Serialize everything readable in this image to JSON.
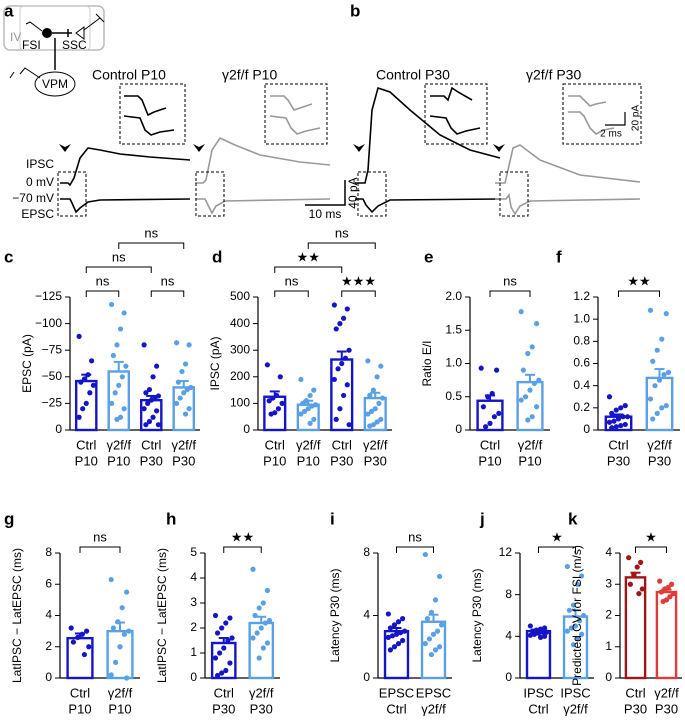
{
  "diagram": {
    "panel_a": "a",
    "panel_b": "b",
    "layer": "IV",
    "fsi": "FSI",
    "ssc": "SSC",
    "vpm": "VPM",
    "titles": [
      "Control P10",
      "γ2f/f P10",
      "Control P30",
      "γ2f/f P30"
    ],
    "trace_labels": [
      "IPSC",
      "0 mV",
      "−70 mV",
      "EPSC"
    ],
    "scale_a": [
      "40 pA",
      "10 ms"
    ],
    "scale_b": [
      "20 pA",
      "2 ms"
    ]
  },
  "chart_data": [
    {
      "type": "bar",
      "label": "c",
      "ylabel": "EPSC (pA)",
      "categories": [
        [
          "Ctrl",
          "P10"
        ],
        [
          "γ2f/f",
          "P10"
        ],
        [
          "Ctrl",
          "P30"
        ],
        [
          "γ2f/f",
          "P30"
        ]
      ],
      "colors": [
        "#1515c8",
        "#5aa0e6",
        "#1515c8",
        "#5aa0e6"
      ],
      "values": [
        -46,
        -55,
        -28,
        -40
      ],
      "errors": [
        6,
        9,
        4,
        6
      ],
      "points": [
        [
          -88,
          -65,
          -52,
          -48,
          -45,
          -42,
          -35,
          -25,
          -20,
          -12
        ],
        [
          -118,
          -110,
          -95,
          -80,
          -70,
          -60,
          -50,
          -42,
          -35,
          -25,
          -20,
          -12,
          -10
        ],
        [
          -80,
          -60,
          -50,
          -38,
          -35,
          -32,
          -30,
          -28,
          -25,
          -20,
          -18,
          -12,
          -8,
          -5,
          -5
        ],
        [
          -82,
          -80,
          -62,
          -55,
          -45,
          -40,
          -38,
          -35,
          -30,
          -25,
          -20,
          -15
        ]
      ],
      "ylim": [
        0,
        -125
      ],
      "yticks": [
        0,
        {
          "value": -25,
          "label": "−25"
        },
        {
          "value": -50,
          "label": "−50"
        },
        {
          "value": -75,
          "label": "−75"
        },
        {
          "value": -100,
          "label": "−100"
        },
        {
          "value": -125,
          "label": "−125"
        }
      ],
      "brackets": [
        {
          "groups": [
            0,
            1
          ],
          "text": "ns"
        },
        {
          "groups": [
            2,
            3
          ],
          "text": "ns"
        },
        {
          "groups": [
            0,
            2
          ],
          "text": "ns"
        },
        {
          "groups": [
            1,
            3
          ],
          "text": "ns"
        }
      ]
    },
    {
      "type": "bar",
      "label": "d",
      "ylabel": "IPSC (pA)",
      "categories": [
        [
          "Ctrl",
          "P10"
        ],
        [
          "γ2f/f",
          "P10"
        ],
        [
          "Ctrl",
          "P30"
        ],
        [
          "γ2f/f",
          "P30"
        ]
      ],
      "colors": [
        "#1515c8",
        "#5aa0e6",
        "#1515c8",
        "#5aa0e6"
      ],
      "values": [
        125,
        95,
        265,
        120
      ],
      "errors": [
        20,
        15,
        30,
        20
      ],
      "points": [
        [
          245,
          200,
          130,
          120,
          110,
          100,
          80,
          65,
          60
        ],
        [
          190,
          150,
          130,
          110,
          100,
          95,
          90,
          80,
          70,
          60,
          40,
          25
        ],
        [
          470,
          455,
          420,
          400,
          380,
          300,
          270,
          250,
          230,
          190,
          170,
          130,
          80,
          40,
          20
        ],
        [
          260,
          240,
          200,
          150,
          130,
          120,
          100,
          80,
          70,
          60,
          40,
          30,
          20,
          15
        ]
      ],
      "ylim": [
        0,
        500
      ],
      "yticks": [
        0,
        100,
        200,
        300,
        400,
        500
      ],
      "brackets": [
        {
          "groups": [
            0,
            1
          ],
          "text": "ns"
        },
        {
          "groups": [
            2,
            3
          ],
          "text": "★★★"
        },
        {
          "groups": [
            0,
            2
          ],
          "text": "★★"
        },
        {
          "groups": [
            1,
            3
          ],
          "text": "ns"
        }
      ]
    },
    {
      "type": "bar",
      "label": "e",
      "ylabel": "Ratio E/I",
      "categories": [
        [
          "Ctrl",
          "P10"
        ],
        [
          "γ2f/f",
          "P10"
        ]
      ],
      "colors": [
        "#1515c8",
        "#5aa0e6"
      ],
      "values": [
        0.44,
        0.72
      ],
      "errors": [
        0.08,
        0.11
      ],
      "points": [
        [
          0.93,
          0.9,
          0.55,
          0.5,
          0.35,
          0.25,
          0.2,
          0.1,
          0.05
        ],
        [
          1.78,
          1.6,
          1.25,
          1.15,
          0.9,
          0.75,
          0.7,
          0.6,
          0.5,
          0.45,
          0.35,
          0.2,
          0.15
        ]
      ],
      "ylim": [
        0,
        2
      ],
      "yticks": [
        0,
        0.5,
        {
          "value": 1,
          "label": "1.0"
        },
        1.5,
        {
          "value": 2,
          "label": "2.0"
        }
      ],
      "brackets": [
        {
          "groups": [
            0,
            1
          ],
          "text": "ns"
        }
      ]
    },
    {
      "type": "bar",
      "label": "f",
      "categories": [
        [
          "Ctrl",
          "P30"
        ],
        [
          "γ2f/f",
          "P30"
        ]
      ],
      "colors": [
        "#1515c8",
        "#5aa0e6"
      ],
      "values": [
        0.12,
        0.47
      ],
      "errors": [
        0.02,
        0.08
      ],
      "points": [
        [
          0.3,
          0.22,
          0.2,
          0.18,
          0.15,
          0.12,
          0.12,
          0.1,
          0.08,
          0.07,
          0.05,
          0.04,
          0.03,
          0.02
        ],
        [
          1.08,
          1.05,
          0.82,
          0.72,
          0.62,
          0.52,
          0.5,
          0.45,
          0.4,
          0.28,
          0.22,
          0.2,
          0.15,
          0.1
        ]
      ],
      "ylim": [
        0,
        1.2
      ],
      "yticks": [
        0,
        0.2,
        0.4,
        0.6,
        0.8,
        {
          "value": 1,
          "label": "1.0"
        },
        1.2
      ],
      "brackets": [
        {
          "groups": [
            0,
            1
          ],
          "text": "★★"
        }
      ]
    },
    {
      "type": "bar",
      "label": "g",
      "ylabel": "LatIPSC − LatEPSC (ms)",
      "categories": [
        [
          "Ctrl",
          "P10"
        ],
        [
          "γ2f/f",
          "P10"
        ]
      ],
      "colors": [
        "#1515c8",
        "#5aa0e6"
      ],
      "values": [
        2.55,
        3.0
      ],
      "errors": [
        0.3,
        0.55
      ],
      "points": [
        [
          3.2,
          3.0,
          2.8,
          2.6,
          2.3,
          2.0,
          1.5
        ],
        [
          6.3,
          5.5,
          4.5,
          3.6,
          3.2,
          3.0,
          2.8,
          2.0,
          1.0,
          0.2,
          0
        ]
      ],
      "ylim": [
        0,
        8
      ],
      "yticks": [
        0,
        2,
        4,
        6,
        8
      ],
      "brackets": [
        {
          "groups": [
            0,
            1
          ],
          "text": "ns"
        }
      ]
    },
    {
      "type": "bar",
      "label": "h",
      "ylabel": "LatIPSC − LatEPSC (ms)",
      "categories": [
        [
          "Ctrl",
          "P30"
        ],
        [
          "γ2f/f",
          "P30"
        ]
      ],
      "colors": [
        "#1515c8",
        "#5aa0e6"
      ],
      "values": [
        1.4,
        2.2
      ],
      "errors": [
        0.2,
        0.25
      ],
      "points": [
        [
          2.5,
          2.4,
          2.2,
          2.0,
          1.8,
          1.6,
          1.5,
          1.2,
          1.0,
          0.8,
          0.6,
          0.3,
          0.2,
          0.1
        ],
        [
          4.35,
          3.5,
          3.0,
          2.8,
          2.5,
          2.3,
          2.2,
          2.0,
          1.8,
          1.6,
          1.4,
          1.2,
          0.8
        ]
      ],
      "ylim": [
        0,
        5
      ],
      "yticks": [
        0,
        1,
        2,
        3,
        4,
        5
      ],
      "brackets": [
        {
          "groups": [
            0,
            1
          ],
          "text": "★★"
        }
      ]
    },
    {
      "type": "bar",
      "label": "i",
      "ylabel": "Latency P30 (ms)",
      "categories": [
        [
          "EPSC",
          "Ctrl"
        ],
        [
          "EPSC",
          "γ2f/f"
        ]
      ],
      "colors": [
        "#1515c8",
        "#5aa0e6"
      ],
      "values": [
        3.0,
        3.6
      ],
      "errors": [
        0.2,
        0.45
      ],
      "points": [
        [
          4.1,
          3.8,
          3.6,
          3.4,
          3.2,
          3.0,
          2.9,
          2.8,
          2.7,
          2.6,
          2.4,
          2.2,
          2.0,
          1.8
        ],
        [
          7.9,
          6.5,
          5.0,
          4.2,
          3.8,
          3.4,
          3.0,
          2.8,
          2.5,
          2.2,
          2.0,
          1.8,
          1.5
        ]
      ],
      "ylim": [
        0,
        8
      ],
      "yticks": [
        0,
        4,
        8
      ],
      "brackets": [
        {
          "groups": [
            0,
            1
          ],
          "text": "ns"
        }
      ]
    },
    {
      "type": "bar",
      "label": "j",
      "ylabel": "Latency P30 (ms)",
      "categories": [
        [
          "IPSC",
          "Ctrl"
        ],
        [
          "IPSC",
          "γ2f/f"
        ]
      ],
      "colors": [
        "#1515c8",
        "#5aa0e6"
      ],
      "values": [
        4.5,
        5.9
      ],
      "errors": [
        0.15,
        0.6
      ],
      "points": [
        [
          5.0,
          4.8,
          4.7,
          4.6,
          4.5,
          4.4,
          4.4,
          4.3,
          4.2,
          4.1,
          4.0,
          3.9
        ],
        [
          10.7,
          9.8,
          9.0,
          7.0,
          6.5,
          6.0,
          5.5,
          5.0,
          4.8,
          4.5,
          4.2,
          3.8,
          3.2
        ]
      ],
      "ylim": [
        0,
        12
      ],
      "yticks": [
        0,
        4,
        8,
        12
      ],
      "brackets": [
        {
          "groups": [
            0,
            1
          ],
          "text": "★"
        }
      ]
    },
    {
      "type": "bar",
      "label": "k",
      "ylabel": "Predicted CV for FSI (m/s)",
      "categories": [
        [
          "Ctrl",
          "P30"
        ],
        [
          "γ2f/f",
          "P30"
        ]
      ],
      "colors": [
        "#a01515",
        "#e03a3a"
      ],
      "values": [
        3.22,
        2.75
      ],
      "errors": [
        0.15,
        0.08
      ],
      "points": [
        [
          3.85,
          3.7,
          3.55,
          3.3,
          3.0,
          2.85,
          2.7
        ],
        [
          3.1,
          3.0,
          2.9,
          2.85,
          2.75,
          2.7,
          2.6,
          2.5,
          2.45
        ]
      ],
      "ylim": [
        0,
        4
      ],
      "yticks": [
        0,
        1,
        2,
        3,
        4
      ],
      "brackets": [
        {
          "groups": [
            0,
            1
          ],
          "text": "★"
        }
      ]
    }
  ]
}
